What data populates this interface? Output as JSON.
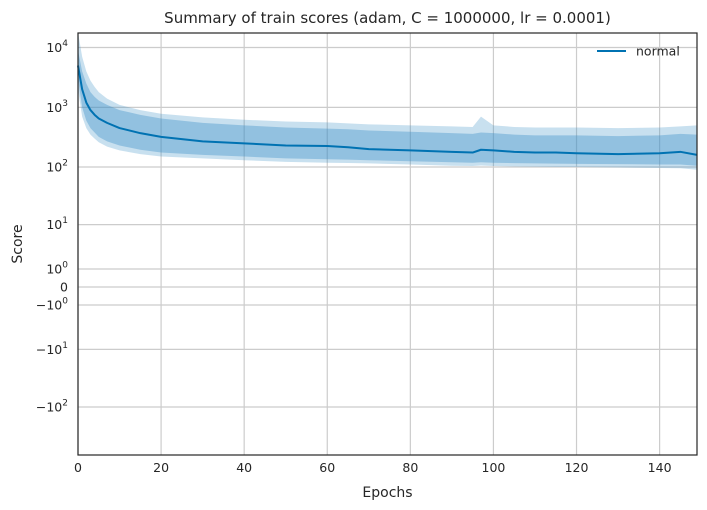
{
  "chart_data": {
    "type": "line",
    "title": "Summary of train scores (adam, C = 1000000, lr = 0.0001)",
    "xlabel": "Epochs",
    "ylabel": "Score",
    "xlim": [
      0,
      149
    ],
    "xticks": [
      0,
      20,
      40,
      60,
      80,
      100,
      120,
      140
    ],
    "yscale": "symlog",
    "yticks": [
      {
        "value": 10000,
        "base": "10",
        "exp": "4"
      },
      {
        "value": 1000,
        "base": "10",
        "exp": "3"
      },
      {
        "value": 100,
        "base": "10",
        "exp": "2"
      },
      {
        "value": 10,
        "base": "10",
        "exp": "1"
      },
      {
        "value": 1,
        "base": "10",
        "exp": "0"
      },
      {
        "value": 0,
        "base": "0",
        "exp": ""
      },
      {
        "value": -1,
        "base": "−10",
        "exp": "0"
      },
      {
        "value": -10,
        "base": "−10",
        "exp": "1"
      },
      {
        "value": -100,
        "base": "−10",
        "exp": "2"
      }
    ],
    "grid": true,
    "legend_position": "top-right",
    "series": [
      {
        "name": "normal",
        "color": "#0072b2",
        "band_color": "#3b8fc7",
        "x": [
          0,
          1,
          2,
          3,
          4,
          5,
          7,
          10,
          15,
          20,
          30,
          40,
          50,
          60,
          65,
          70,
          80,
          90,
          95,
          97,
          100,
          105,
          110,
          115,
          120,
          130,
          140,
          145,
          149
        ],
        "y": [
          5000,
          2000,
          1200,
          900,
          750,
          650,
          550,
          450,
          370,
          320,
          270,
          250,
          230,
          225,
          215,
          200,
          190,
          180,
          175,
          195,
          190,
          180,
          175,
          175,
          170,
          165,
          170,
          180,
          160
        ],
        "band_inner_low": [
          3000,
          1000,
          600,
          450,
          380,
          320,
          270,
          230,
          195,
          175,
          160,
          150,
          140,
          135,
          133,
          130,
          125,
          120,
          118,
          120,
          118,
          116,
          115,
          114,
          113,
          112,
          110,
          110,
          105
        ],
        "band_inner_high": [
          9000,
          4000,
          2500,
          1800,
          1500,
          1300,
          1100,
          900,
          750,
          650,
          550,
          500,
          460,
          440,
          430,
          410,
          390,
          370,
          360,
          380,
          370,
          350,
          340,
          340,
          340,
          330,
          340,
          360,
          350
        ],
        "band_outer_low": [
          2000,
          700,
          450,
          350,
          300,
          260,
          220,
          190,
          165,
          150,
          140,
          130,
          122,
          118,
          117,
          115,
          110,
          105,
          104,
          106,
          104,
          102,
          101,
          100,
          100,
          98,
          96,
          95,
          90
        ],
        "band_outer_high": [
          18000,
          7000,
          4000,
          2800,
          2200,
          1800,
          1400,
          1100,
          900,
          780,
          680,
          620,
          580,
          560,
          540,
          520,
          500,
          480,
          470,
          700,
          500,
          470,
          460,
          460,
          460,
          450,
          460,
          480,
          500
        ]
      }
    ]
  }
}
